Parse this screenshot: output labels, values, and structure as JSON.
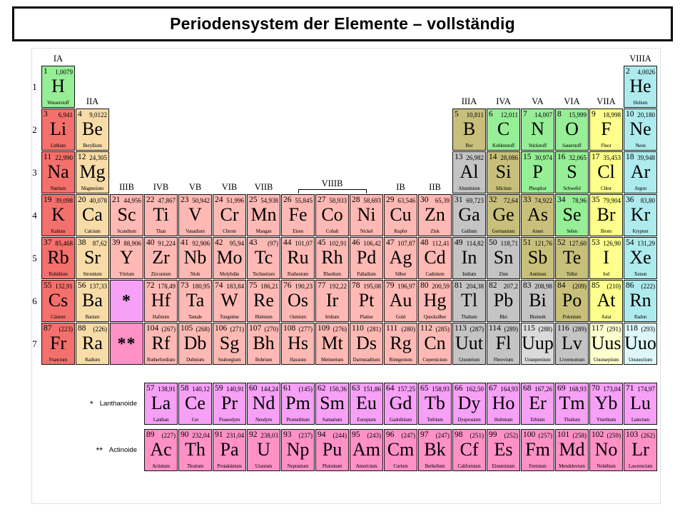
{
  "title": "Periodensystem der Elemente – vollständig",
  "legend": {
    "lanthanide_marker": "*",
    "lanthanide_label": "Lanthanoide",
    "actinide_marker": "**",
    "actinide_label": "Actinoide"
  },
  "period_labels": [
    "1",
    "2",
    "3",
    "4",
    "5",
    "6",
    "7"
  ],
  "group_labels": [
    {
      "text": "IA",
      "row": 1,
      "col": 1
    },
    {
      "text": "VIIIA",
      "row": 1,
      "col": 18
    },
    {
      "text": "IIA",
      "row": 2,
      "col": 2
    },
    {
      "text": "IIIA",
      "row": 2,
      "col": 13
    },
    {
      "text": "IVA",
      "row": 2,
      "col": 14
    },
    {
      "text": "VA",
      "row": 2,
      "col": 15
    },
    {
      "text": "VIA",
      "row": 2,
      "col": 16
    },
    {
      "text": "VIIA",
      "row": 2,
      "col": 17
    },
    {
      "text": "IIIB",
      "row": 4,
      "col": 3
    },
    {
      "text": "IVB",
      "row": 4,
      "col": 4
    },
    {
      "text": "VB",
      "row": 4,
      "col": 5
    },
    {
      "text": "VIB",
      "row": 4,
      "col": 6
    },
    {
      "text": "VIIB",
      "row": 4,
      "col": 7
    },
    {
      "text": "VIIIB",
      "row": 4,
      "col": 8,
      "span": 3,
      "bracket": true
    },
    {
      "text": "IB",
      "row": 4,
      "col": 11
    },
    {
      "text": "IIB",
      "row": 4,
      "col": 12
    }
  ],
  "colors": {
    "alkali": "#f4706c",
    "alkaline": "#f7dca8",
    "transition": "#ffb9b4",
    "post": "#c4c4c4",
    "post_light": "#dadada",
    "metalloid": "#c8c07a",
    "nonmetal": "#96ee96",
    "halogen": "#feff8c",
    "halogen_pale": "#ffffcf",
    "noble": "#aeebee",
    "noble_pale": "#ddf6f8",
    "lan": "#f6a0f6",
    "act": "#ff91c6"
  },
  "placeholders": [
    {
      "symbol": "*",
      "p": 6,
      "g": 3,
      "cat": "lan"
    },
    {
      "symbol": "**",
      "p": 7,
      "g": 3,
      "cat": "act"
    }
  ],
  "elements": [
    {
      "n": 1,
      "s": "H",
      "m": "1,0079",
      "name": "Wasserstoff",
      "cat": "nonmetal",
      "p": 1,
      "g": 1
    },
    {
      "n": 2,
      "s": "He",
      "m": "4,0026",
      "name": "Helium",
      "cat": "noble",
      "p": 1,
      "g": 18
    },
    {
      "n": 3,
      "s": "Li",
      "m": "6,941",
      "name": "Lithium",
      "cat": "alkali",
      "p": 2,
      "g": 1
    },
    {
      "n": 4,
      "s": "Be",
      "m": "9,0122",
      "name": "Beryllium",
      "cat": "alkaline",
      "p": 2,
      "g": 2
    },
    {
      "n": 5,
      "s": "B",
      "m": "10,811",
      "name": "Bor",
      "cat": "metalloid",
      "p": 2,
      "g": 13
    },
    {
      "n": 6,
      "s": "C",
      "m": "12,011",
      "name": "Kohlenstoff",
      "cat": "nonmetal",
      "p": 2,
      "g": 14
    },
    {
      "n": 7,
      "s": "N",
      "m": "14,007",
      "name": "Stickstoff",
      "cat": "nonmetal",
      "p": 2,
      "g": 15
    },
    {
      "n": 8,
      "s": "O",
      "m": "15,999",
      "name": "Sauerstoff",
      "cat": "nonmetal",
      "p": 2,
      "g": 16
    },
    {
      "n": 9,
      "s": "F",
      "m": "18,998",
      "name": "Fluor",
      "cat": "halogen",
      "p": 2,
      "g": 17
    },
    {
      "n": 10,
      "s": "Ne",
      "m": "20,180",
      "name": "Neon",
      "cat": "noble",
      "p": 2,
      "g": 18
    },
    {
      "n": 11,
      "s": "Na",
      "m": "22,990",
      "name": "Natrium",
      "cat": "alkali",
      "p": 3,
      "g": 1
    },
    {
      "n": 12,
      "s": "Mg",
      "m": "24,305",
      "name": "Magnesium",
      "cat": "alkaline",
      "p": 3,
      "g": 2
    },
    {
      "n": 13,
      "s": "Al",
      "m": "26,982",
      "name": "Aluminium",
      "cat": "post",
      "p": 3,
      "g": 13
    },
    {
      "n": 14,
      "s": "Si",
      "m": "28,086",
      "name": "Silicium",
      "cat": "metalloid",
      "p": 3,
      "g": 14
    },
    {
      "n": 15,
      "s": "P",
      "m": "30,974",
      "name": "Phosphor",
      "cat": "nonmetal",
      "p": 3,
      "g": 15
    },
    {
      "n": 16,
      "s": "S",
      "m": "32,065",
      "name": "Schwefel",
      "cat": "nonmetal",
      "p": 3,
      "g": 16
    },
    {
      "n": 17,
      "s": "Cl",
      "m": "35,453",
      "name": "Chlor",
      "cat": "halogen",
      "p": 3,
      "g": 17
    },
    {
      "n": 18,
      "s": "Ar",
      "m": "39,948",
      "name": "Argon",
      "cat": "noble",
      "p": 3,
      "g": 18
    },
    {
      "n": 19,
      "s": "K",
      "m": "39,098",
      "name": "Kalium",
      "cat": "alkali",
      "p": 4,
      "g": 1
    },
    {
      "n": 20,
      "s": "Ca",
      "m": "40,078",
      "name": "Calcium",
      "cat": "alkaline",
      "p": 4,
      "g": 2
    },
    {
      "n": 21,
      "s": "Sc",
      "m": "44,956",
      "name": "Scandium",
      "cat": "transition",
      "p": 4,
      "g": 3
    },
    {
      "n": 22,
      "s": "Ti",
      "m": "47,867",
      "name": "Titan",
      "cat": "transition",
      "p": 4,
      "g": 4
    },
    {
      "n": 23,
      "s": "V",
      "m": "50,942",
      "name": "Vanadium",
      "cat": "transition",
      "p": 4,
      "g": 5
    },
    {
      "n": 24,
      "s": "Cr",
      "m": "51,996",
      "name": "Chrom",
      "cat": "transition",
      "p": 4,
      "g": 6
    },
    {
      "n": 25,
      "s": "Mn",
      "m": "54,938",
      "name": "Mangan",
      "cat": "transition",
      "p": 4,
      "g": 7
    },
    {
      "n": 26,
      "s": "Fe",
      "m": "55,845",
      "name": "Eisen",
      "cat": "transition",
      "p": 4,
      "g": 8
    },
    {
      "n": 27,
      "s": "Co",
      "m": "58,933",
      "name": "Cobalt",
      "cat": "transition",
      "p": 4,
      "g": 9
    },
    {
      "n": 28,
      "s": "Ni",
      "m": "58,693",
      "name": "Nickel",
      "cat": "transition",
      "p": 4,
      "g": 10
    },
    {
      "n": 29,
      "s": "Cu",
      "m": "63,546",
      "name": "Kupfer",
      "cat": "transition",
      "p": 4,
      "g": 11
    },
    {
      "n": 30,
      "s": "Zn",
      "m": "65,39",
      "name": "Zink",
      "cat": "transition",
      "p": 4,
      "g": 12
    },
    {
      "n": 31,
      "s": "Ga",
      "m": "69,723",
      "name": "Gallium",
      "cat": "post",
      "p": 4,
      "g": 13
    },
    {
      "n": 32,
      "s": "Ge",
      "m": "72,64",
      "name": "Germanium",
      "cat": "metalloid",
      "p": 4,
      "g": 14
    },
    {
      "n": 33,
      "s": "As",
      "m": "74,922",
      "name": "Arsen",
      "cat": "metalloid",
      "p": 4,
      "g": 15
    },
    {
      "n": 34,
      "s": "Se",
      "m": "78,96",
      "name": "Selen",
      "cat": "nonmetal",
      "p": 4,
      "g": 16
    },
    {
      "n": 35,
      "s": "Br",
      "m": "79,904",
      "name": "Brom",
      "cat": "halogen",
      "p": 4,
      "g": 17
    },
    {
      "n": 36,
      "s": "Kr",
      "m": "83,80",
      "name": "Krypton",
      "cat": "noble",
      "p": 4,
      "g": 18
    },
    {
      "n": 37,
      "s": "Rb",
      "m": "85,468",
      "name": "Rubidium",
      "cat": "alkali",
      "p": 5,
      "g": 1
    },
    {
      "n": 38,
      "s": "Sr",
      "m": "87,62",
      "name": "Strontium",
      "cat": "alkaline",
      "p": 5,
      "g": 2
    },
    {
      "n": 39,
      "s": "Y",
      "m": "88,906",
      "name": "Yttrium",
      "cat": "transition",
      "p": 5,
      "g": 3
    },
    {
      "n": 40,
      "s": "Zr",
      "m": "91,224",
      "name": "Zirconium",
      "cat": "transition",
      "p": 5,
      "g": 4
    },
    {
      "n": 41,
      "s": "Nb",
      "m": "92,906",
      "name": "Niob",
      "cat": "transition",
      "p": 5,
      "g": 5
    },
    {
      "n": 42,
      "s": "Mo",
      "m": "95,94",
      "name": "Molybdän",
      "cat": "transition",
      "p": 5,
      "g": 6
    },
    {
      "n": 43,
      "s": "Tc",
      "m": "(97)",
      "name": "Technetium",
      "cat": "transition",
      "p": 5,
      "g": 7
    },
    {
      "n": 44,
      "s": "Ru",
      "m": "101,07",
      "name": "Ruthenium",
      "cat": "transition",
      "p": 5,
      "g": 8
    },
    {
      "n": 45,
      "s": "Rh",
      "m": "102,91",
      "name": "Rhodium",
      "cat": "transition",
      "p": 5,
      "g": 9
    },
    {
      "n": 46,
      "s": "Pd",
      "m": "106,42",
      "name": "Palladium",
      "cat": "transition",
      "p": 5,
      "g": 10
    },
    {
      "n": 47,
      "s": "Ag",
      "m": "107,87",
      "name": "Silber",
      "cat": "transition",
      "p": 5,
      "g": 11
    },
    {
      "n": 48,
      "s": "Cd",
      "m": "112,41",
      "name": "Cadmium",
      "cat": "transition",
      "p": 5,
      "g": 12
    },
    {
      "n": 49,
      "s": "In",
      "m": "114,82",
      "name": "Indium",
      "cat": "post",
      "p": 5,
      "g": 13
    },
    {
      "n": 50,
      "s": "Sn",
      "m": "118,71",
      "name": "Zinn",
      "cat": "post",
      "p": 5,
      "g": 14
    },
    {
      "n": 51,
      "s": "Sb",
      "m": "121,76",
      "name": "Antimon",
      "cat": "metalloid",
      "p": 5,
      "g": 15
    },
    {
      "n": 52,
      "s": "Te",
      "m": "127,60",
      "name": "Tellur",
      "cat": "metalloid",
      "p": 5,
      "g": 16
    },
    {
      "n": 53,
      "s": "I",
      "m": "126,90",
      "name": "Iod",
      "cat": "halogen",
      "p": 5,
      "g": 17
    },
    {
      "n": 54,
      "s": "Xe",
      "m": "131,29",
      "name": "Xenon",
      "cat": "noble",
      "p": 5,
      "g": 18
    },
    {
      "n": 55,
      "s": "Cs",
      "m": "132,91",
      "name": "Cäsium",
      "cat": "alkali",
      "p": 6,
      "g": 1
    },
    {
      "n": 56,
      "s": "Ba",
      "m": "137,33",
      "name": "Barium",
      "cat": "alkaline",
      "p": 6,
      "g": 2
    },
    {
      "n": 72,
      "s": "Hf",
      "m": "178,49",
      "name": "Hafnium",
      "cat": "transition",
      "p": 6,
      "g": 4
    },
    {
      "n": 73,
      "s": "Ta",
      "m": "180,95",
      "name": "Tantale",
      "cat": "transition",
      "p": 6,
      "g": 5
    },
    {
      "n": 74,
      "s": "W",
      "m": "183,84",
      "name": "Tungstène",
      "cat": "transition",
      "p": 6,
      "g": 6
    },
    {
      "n": 75,
      "s": "Re",
      "m": "186,21",
      "name": "Rhénium",
      "cat": "transition",
      "p": 6,
      "g": 7
    },
    {
      "n": 76,
      "s": "Os",
      "m": "190,23",
      "name": "Osmium",
      "cat": "transition",
      "p": 6,
      "g": 8
    },
    {
      "n": 77,
      "s": "Ir",
      "m": "192,22",
      "name": "Iridium",
      "cat": "transition",
      "p": 6,
      "g": 9
    },
    {
      "n": 78,
      "s": "Pt",
      "m": "195,08",
      "name": "Platine",
      "cat": "transition",
      "p": 6,
      "g": 10
    },
    {
      "n": 79,
      "s": "Au",
      "m": "196,97",
      "name": "Gold",
      "cat": "transition",
      "p": 6,
      "g": 11
    },
    {
      "n": 80,
      "s": "Hg",
      "m": "200,59",
      "name": "Quecksilber",
      "cat": "transition",
      "p": 6,
      "g": 12
    },
    {
      "n": 81,
      "s": "Tl",
      "m": "204,38",
      "name": "Thalium",
      "cat": "post",
      "p": 6,
      "g": 13
    },
    {
      "n": 82,
      "s": "Pb",
      "m": "207,2",
      "name": "Blei",
      "cat": "post",
      "p": 6,
      "g": 14
    },
    {
      "n": 83,
      "s": "Bi",
      "m": "208,98",
      "name": "Bismuth",
      "cat": "post",
      "p": 6,
      "g": 15
    },
    {
      "n": 84,
      "s": "Po",
      "m": "(209)",
      "name": "Polonium",
      "cat": "metalloid",
      "p": 6,
      "g": 16
    },
    {
      "n": 85,
      "s": "At",
      "m": "(210)",
      "name": "Astat",
      "cat": "halogen",
      "p": 6,
      "g": 17
    },
    {
      "n": 86,
      "s": "Rn",
      "m": "(222)",
      "name": "Radon",
      "cat": "noble",
      "p": 6,
      "g": 18
    },
    {
      "n": 87,
      "s": "Fr",
      "m": "(223)",
      "name": "Francium",
      "cat": "alkali",
      "p": 7,
      "g": 1
    },
    {
      "n": 88,
      "s": "Ra",
      "m": "(226)",
      "name": "Radium",
      "cat": "alkaline",
      "p": 7,
      "g": 2
    },
    {
      "n": 104,
      "s": "Rf",
      "m": "(267)",
      "name": "Rutherfordium",
      "cat": "transition",
      "p": 7,
      "g": 4
    },
    {
      "n": 105,
      "s": "Db",
      "m": "(268)",
      "name": "Dubnium",
      "cat": "transition",
      "p": 7,
      "g": 5
    },
    {
      "n": 106,
      "s": "Sg",
      "m": "(271)",
      "name": "Seaborgium",
      "cat": "transition",
      "p": 7,
      "g": 6
    },
    {
      "n": 107,
      "s": "Bh",
      "m": "(270)",
      "name": "Bohrium",
      "cat": "transition",
      "p": 7,
      "g": 7
    },
    {
      "n": 108,
      "s": "Hs",
      "m": "(277)",
      "name": "Hassium",
      "cat": "transition",
      "p": 7,
      "g": 8
    },
    {
      "n": 109,
      "s": "Mt",
      "m": "(276)",
      "name": "Meitnerium",
      "cat": "transition",
      "p": 7,
      "g": 9
    },
    {
      "n": 110,
      "s": "Ds",
      "m": "(281)",
      "name": "Darmstadtium",
      "cat": "transition",
      "p": 7,
      "g": 10
    },
    {
      "n": 111,
      "s": "Rg",
      "m": "(280)",
      "name": "Röntgenium",
      "cat": "transition",
      "p": 7,
      "g": 11
    },
    {
      "n": 112,
      "s": "Cn",
      "m": "(285)",
      "name": "Copernicium",
      "cat": "transition",
      "p": 7,
      "g": 12
    },
    {
      "n": 113,
      "s": "Uut",
      "m": "(287)",
      "name": "Ununtrium",
      "cat": "post",
      "p": 7,
      "g": 13
    },
    {
      "n": 114,
      "s": "Fl",
      "m": "(289)",
      "name": "Flerovium",
      "cat": "post",
      "p": 7,
      "g": 14
    },
    {
      "n": 115,
      "s": "Uup",
      "m": "(288)",
      "name": "Ununpentium",
      "cat": "post_light",
      "p": 7,
      "g": 15
    },
    {
      "n": 116,
      "s": "Lv",
      "m": "(289)",
      "name": "Livermorium",
      "cat": "post",
      "p": 7,
      "g": 16
    },
    {
      "n": 117,
      "s": "Uus",
      "m": "(291)",
      "name": "Ununseptium",
      "cat": "halogen_pale",
      "p": 7,
      "g": 17
    },
    {
      "n": 118,
      "s": "Uuo",
      "m": "(293)",
      "name": "Ununoctium",
      "cat": "noble_pale",
      "p": 7,
      "g": 18
    }
  ],
  "lanthanides": [
    {
      "n": 57,
      "s": "La",
      "m": "138,91",
      "name": "Lanthan",
      "cat": "lan"
    },
    {
      "n": 58,
      "s": "Ce",
      "m": "140,12",
      "name": "Cer",
      "cat": "lan"
    },
    {
      "n": 59,
      "s": "Pr",
      "m": "140,91",
      "name": "Praseodym",
      "cat": "lan"
    },
    {
      "n": 60,
      "s": "Nd",
      "m": "144,24",
      "name": "Neodym",
      "cat": "lan"
    },
    {
      "n": 61,
      "s": "Pm",
      "m": "(145)",
      "name": "Promethium",
      "cat": "lan"
    },
    {
      "n": 62,
      "s": "Sm",
      "m": "150,36",
      "name": "Samarium",
      "cat": "lan"
    },
    {
      "n": 63,
      "s": "Eu",
      "m": "151,86",
      "name": "Europium",
      "cat": "lan"
    },
    {
      "n": 64,
      "s": "Gd",
      "m": "157,25",
      "name": "Gadolinium",
      "cat": "lan"
    },
    {
      "n": 65,
      "s": "Tb",
      "m": "158,93",
      "name": "Terbium",
      "cat": "lan"
    },
    {
      "n": 66,
      "s": "Dy",
      "m": "162,50",
      "name": "Dysprosium",
      "cat": "lan"
    },
    {
      "n": 67,
      "s": "Ho",
      "m": "164,93",
      "name": "Holmium",
      "cat": "lan"
    },
    {
      "n": 68,
      "s": "Er",
      "m": "167,26",
      "name": "Erbium",
      "cat": "lan"
    },
    {
      "n": 69,
      "s": "Tm",
      "m": "168,93",
      "name": "Thulium",
      "cat": "lan"
    },
    {
      "n": 70,
      "s": "Yb",
      "m": "173,04",
      "name": "Ytterbium",
      "cat": "lan"
    },
    {
      "n": 71,
      "s": "Lu",
      "m": "174,97",
      "name": "Lutecium",
      "cat": "lan"
    }
  ],
  "actinides": [
    {
      "n": 89,
      "s": "Ac",
      "m": "(227)",
      "name": "Actinium",
      "cat": "act"
    },
    {
      "n": 90,
      "s": "Th",
      "m": "232,04",
      "name": "Thorium",
      "cat": "act"
    },
    {
      "n": 91,
      "s": "Pa",
      "m": "231,04",
      "name": "Protaktinium",
      "cat": "act"
    },
    {
      "n": 92,
      "s": "U",
      "m": "238,03",
      "name": "Uranium",
      "cat": "act"
    },
    {
      "n": 93,
      "s": "Np",
      "m": "(237)",
      "name": "Neptunium",
      "cat": "act"
    },
    {
      "n": 94,
      "s": "Pu",
      "m": "(244)",
      "name": "Plutonium",
      "cat": "act"
    },
    {
      "n": 95,
      "s": "Am",
      "m": "(243)",
      "name": "Americium",
      "cat": "act"
    },
    {
      "n": 96,
      "s": "Cm",
      "m": "(247)",
      "name": "Curium",
      "cat": "act"
    },
    {
      "n": 97,
      "s": "Bk",
      "m": "(247)",
      "name": "Berkelium",
      "cat": "act"
    },
    {
      "n": 98,
      "s": "Cf",
      "m": "(251)",
      "name": "Californium",
      "cat": "act"
    },
    {
      "n": 99,
      "s": "Es",
      "m": "(252)",
      "name": "Einsteinium",
      "cat": "act"
    },
    {
      "n": 100,
      "s": "Fm",
      "m": "(257)",
      "name": "Fermium",
      "cat": "act"
    },
    {
      "n": 101,
      "s": "Md",
      "m": "(258)",
      "name": "Mendelevium",
      "cat": "act"
    },
    {
      "n": 102,
      "s": "No",
      "m": "(259)",
      "name": "Nobélium",
      "cat": "act"
    },
    {
      "n": 103,
      "s": "Lr",
      "m": "(262)",
      "name": "Lawrencium",
      "cat": "act"
    }
  ]
}
